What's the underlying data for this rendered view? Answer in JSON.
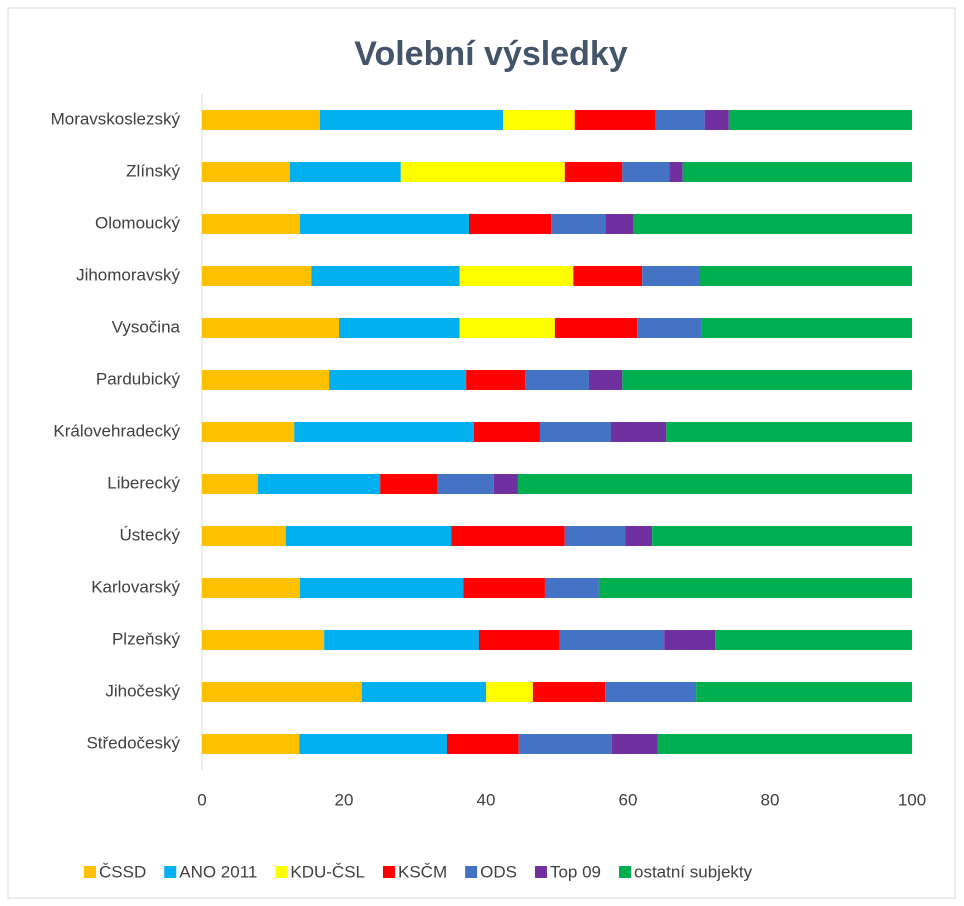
{
  "chart_data": {
    "type": "stacked_bar_horizontal",
    "title": "Volební výsledky",
    "categories": [
      "Moravskoslezský",
      "Zlínský",
      "Olomoucký",
      "Jihomoravský",
      "Vysočina ",
      "Pardubický",
      "Královehradecký",
      "Liberecký",
      "Ústecký",
      "Karlovarský",
      "Plzeňský",
      "Jihočeský",
      "Středočeský"
    ],
    "series": [
      {
        "name": "ČSSD",
        "color": "#ffc000",
        "values": [
          16.6,
          12.4,
          13.8,
          15.4,
          19.3,
          17.9,
          13.0,
          7.9,
          11.8,
          13.8,
          17.2,
          22.5,
          13.7
        ]
      },
      {
        "name": "ANO 2011",
        "color": "#00b0f0",
        "values": [
          25.8,
          15.6,
          23.8,
          20.9,
          17.0,
          19.3,
          25.3,
          17.2,
          23.3,
          23.0,
          21.8,
          17.5,
          20.8
        ]
      },
      {
        "name": "KDU-ČSL",
        "color": "#ffff00",
        "values": [
          10.1,
          23.1,
          0,
          16.0,
          13.4,
          0,
          0,
          0,
          0,
          0,
          0,
          6.6,
          0
        ]
      },
      {
        "name": "KSČM",
        "color": "#ff0000",
        "values": [
          11.4,
          8.1,
          11.6,
          9.7,
          11.6,
          8.3,
          9.3,
          8.0,
          16.0,
          11.5,
          11.4,
          10.2,
          10.1
        ]
      },
      {
        "name": "ODS",
        "color": "#4472c4",
        "values": [
          6.9,
          6.6,
          7.6,
          8.0,
          9.1,
          9.0,
          10.0,
          8.0,
          8.5,
          7.6,
          14.7,
          12.8,
          13.1
        ]
      },
      {
        "name": "Top 09",
        "color": "#7030a0",
        "values": [
          3.4,
          1.9,
          4.0,
          0,
          0,
          4.7,
          7.8,
          3.4,
          3.8,
          0,
          7.2,
          0,
          6.5
        ]
      },
      {
        "name": "ostatní subjekty",
        "color": "#00b050",
        "values": [
          25.8,
          32.3,
          39.2,
          30.0,
          29.6,
          40.8,
          34.6,
          55.5,
          36.6,
          44.1,
          27.7,
          30.4,
          35.8
        ]
      }
    ],
    "xlim": [
      0,
      100
    ],
    "xticks": [
      0,
      20,
      40,
      60,
      80,
      100
    ],
    "grid": false,
    "legend": "bottom"
  }
}
